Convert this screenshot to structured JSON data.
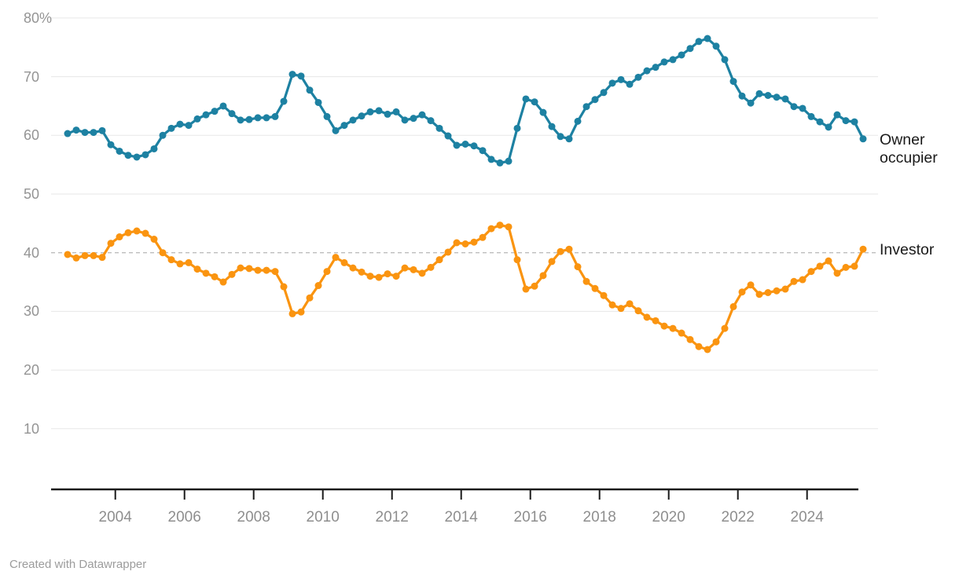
{
  "chart_data": {
    "type": "line",
    "title": "",
    "x_start": "2002-Q3",
    "x_end": "2025-Q3",
    "x_step": "quarter",
    "x_tick_years": [
      2004,
      2006,
      2008,
      2010,
      2012,
      2014,
      2016,
      2018,
      2020,
      2022,
      2024
    ],
    "ylim": [
      0,
      80
    ],
    "grid": "horizontal",
    "legend_position": "right-inline",
    "reference_line": {
      "value": 40,
      "style": "dashed"
    },
    "y_ticks": [
      {
        "value": 80,
        "label": "80",
        "suffix": "%"
      },
      {
        "value": 70,
        "label": "70",
        "suffix": ""
      },
      {
        "value": 60,
        "label": "60",
        "suffix": ""
      },
      {
        "value": 50,
        "label": "50",
        "suffix": ""
      },
      {
        "value": 40,
        "label": "40",
        "suffix": ""
      },
      {
        "value": 30,
        "label": "30",
        "suffix": ""
      },
      {
        "value": 20,
        "label": "20",
        "suffix": ""
      },
      {
        "value": 10,
        "label": "10",
        "suffix": ""
      }
    ],
    "series": [
      {
        "name": "Owner occupier",
        "color": "#1d81a2",
        "values": [
          60.3,
          60.9,
          60.5,
          60.5,
          60.8,
          58.4,
          57.3,
          56.6,
          56.3,
          56.7,
          57.7,
          60.0,
          61.2,
          61.9,
          61.7,
          62.8,
          63.5,
          64.1,
          65.0,
          63.7,
          62.6,
          62.7,
          63.0,
          63.0,
          63.2,
          65.8,
          70.4,
          70.1,
          67.7,
          65.6,
          63.2,
          60.8,
          61.7,
          62.6,
          63.3,
          64.0,
          64.2,
          63.6,
          64.0,
          62.6,
          62.9,
          63.5,
          62.5,
          61.2,
          59.9,
          58.3,
          58.5,
          58.2,
          57.4,
          55.9,
          55.3,
          55.6,
          61.2,
          66.2,
          65.7,
          63.9,
          61.5,
          59.8,
          59.4,
          62.4,
          64.9,
          66.1,
          67.3,
          68.9,
          69.5,
          68.7,
          69.9,
          71.0,
          71.6,
          72.5,
          72.9,
          73.7,
          74.8,
          76.0,
          76.5,
          75.2,
          72.9,
          69.2,
          66.7,
          65.5,
          67.1,
          66.8,
          66.5,
          66.2,
          64.9,
          64.6,
          63.2,
          62.3,
          61.4,
          63.5,
          62.5,
          62.3,
          59.4
        ]
      },
      {
        "name": "Investor",
        "color": "#fa9410",
        "values": [
          39.7,
          39.1,
          39.5,
          39.5,
          39.2,
          41.6,
          42.7,
          43.4,
          43.7,
          43.3,
          42.3,
          40.0,
          38.8,
          38.1,
          38.3,
          37.2,
          36.5,
          35.9,
          35.0,
          36.3,
          37.4,
          37.3,
          37.0,
          37.0,
          36.8,
          34.2,
          29.6,
          29.9,
          32.3,
          34.4,
          36.8,
          39.2,
          38.3,
          37.4,
          36.7,
          36.0,
          35.8,
          36.4,
          36.0,
          37.4,
          37.1,
          36.5,
          37.5,
          38.8,
          40.1,
          41.7,
          41.5,
          41.8,
          42.6,
          44.1,
          44.7,
          44.4,
          38.8,
          33.8,
          34.3,
          36.1,
          38.5,
          40.2,
          40.6,
          37.6,
          35.1,
          33.9,
          32.7,
          31.1,
          30.5,
          31.3,
          30.1,
          29.0,
          28.4,
          27.5,
          27.1,
          26.3,
          25.2,
          24.0,
          23.5,
          24.8,
          27.1,
          30.8,
          33.3,
          34.5,
          32.9,
          33.2,
          33.5,
          33.8,
          35.1,
          35.4,
          36.8,
          37.7,
          38.6,
          36.5,
          37.5,
          37.7,
          40.6
        ]
      }
    ],
    "colors": {
      "gridline": "#e7e7e7",
      "reference_dash": "#bdbdbd",
      "axis": "#1a1a1a",
      "tick_label": "#8e8e8e",
      "series_label_text": "#1a1a1a"
    }
  },
  "labels": {
    "owner": "Owner occupier",
    "investor": "Investor"
  },
  "footer": {
    "credit": "Created with Datawrapper"
  }
}
